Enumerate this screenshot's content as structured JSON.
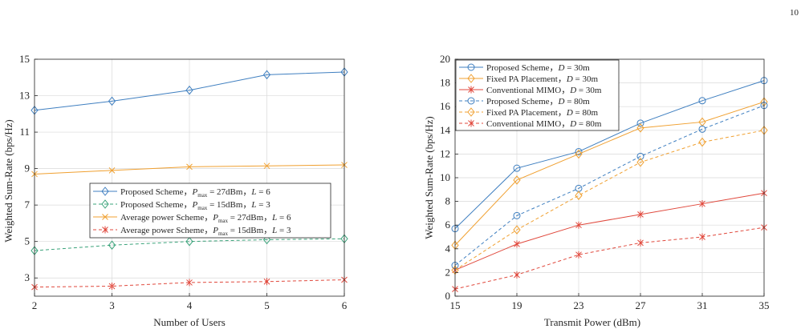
{
  "page": {
    "number": "10"
  },
  "colors": {
    "blue": "#3f7fc0",
    "orange": "#f0a030",
    "green": "#3aa37a",
    "red": "#e0483c"
  },
  "chart_data": [
    {
      "id": "left",
      "type": "line",
      "title": "",
      "xlabel": "Number of Users",
      "ylabel": "Weighted Sum-Rate (bps/Hz)",
      "xlim": [
        2,
        6
      ],
      "ylim": [
        2,
        15
      ],
      "xticks": [
        2,
        3,
        4,
        5,
        6
      ],
      "yticks": [
        3,
        5,
        7,
        9,
        11,
        13,
        15
      ],
      "grid": true,
      "legend_position": "center",
      "x": [
        2,
        3,
        4,
        5,
        6
      ],
      "series": [
        {
          "name_main": "Proposed Scheme，",
          "name_var": "P",
          "name_sub": "max",
          "name_rest": " = 27dBm，",
          "name_var2": "L",
          "name_end": " = 6",
          "color": "#3f7fc0",
          "dash": "solid",
          "marker": "diamond",
          "values": [
            12.2,
            12.7,
            13.3,
            14.15,
            14.3
          ]
        },
        {
          "name_main": "Proposed Scheme，",
          "name_var": "P",
          "name_sub": "max",
          "name_rest": " = 15dBm，",
          "name_var2": "L",
          "name_end": " = 3",
          "color": "#3aa37a",
          "dash": "dashed",
          "marker": "diamond",
          "values": [
            4.5,
            4.8,
            5.0,
            5.1,
            5.15
          ]
        },
        {
          "name_main": "Average power Scheme，",
          "name_var": "P",
          "name_sub": "max",
          "name_rest": " = 27dBm，",
          "name_var2": "L",
          "name_end": " = 6",
          "color": "#f0a030",
          "dash": "solid",
          "marker": "x",
          "values": [
            8.7,
            8.9,
            9.1,
            9.15,
            9.2
          ]
        },
        {
          "name_main": "Average power Scheme，",
          "name_var": "P",
          "name_sub": "max",
          "name_rest": " = 15dBm，",
          "name_var2": "L",
          "name_end": " = 3",
          "color": "#e0483c",
          "dash": "dashed",
          "marker": "star",
          "values": [
            2.5,
            2.55,
            2.75,
            2.8,
            2.9
          ]
        }
      ]
    },
    {
      "id": "right",
      "type": "line",
      "title": "",
      "xlabel": "Transmit Power (dBm)",
      "ylabel": "Weighted Sum-Rate (bps/Hz)",
      "xlim": [
        15,
        35
      ],
      "ylim": [
        0,
        20
      ],
      "xticks": [
        15,
        19,
        23,
        27,
        31,
        35
      ],
      "yticks": [
        0,
        2,
        4,
        6,
        8,
        10,
        12,
        14,
        16,
        18,
        20
      ],
      "grid": true,
      "legend_position": "top-left",
      "x": [
        15,
        19,
        23,
        27,
        31,
        35
      ],
      "series": [
        {
          "name_main": "Proposed Scheme，",
          "name_var": "D",
          "name_end": " = 30m",
          "color": "#3f7fc0",
          "dash": "solid",
          "marker": "circle",
          "values": [
            5.7,
            10.8,
            12.2,
            14.6,
            16.5,
            18.2
          ]
        },
        {
          "name_main": "Fixed PA Placement，",
          "name_var": "D",
          "name_end": " = 30m",
          "color": "#f0a030",
          "dash": "solid",
          "marker": "diamond",
          "values": [
            4.3,
            9.8,
            12.0,
            14.2,
            14.7,
            16.4
          ]
        },
        {
          "name_main": "Conventional MIMO，",
          "name_var": "D",
          "name_end": " = 30m",
          "color": "#e0483c",
          "dash": "solid",
          "marker": "star",
          "values": [
            2.2,
            4.4,
            6.0,
            6.9,
            7.8,
            8.7
          ]
        },
        {
          "name_main": "Proposed Scheme，",
          "name_var": "D",
          "name_end": " = 80m",
          "color": "#3f7fc0",
          "dash": "dashed",
          "marker": "circle",
          "values": [
            2.6,
            6.8,
            9.1,
            11.8,
            14.1,
            16.1
          ]
        },
        {
          "name_main": "Fixed PA Placement，",
          "name_var": "D",
          "name_end": " = 80m",
          "color": "#f0a030",
          "dash": "dashed",
          "marker": "diamond",
          "values": [
            2.2,
            5.6,
            8.5,
            11.3,
            13.0,
            14.0
          ]
        },
        {
          "name_main": "Conventional MIMO，",
          "name_var": "D",
          "name_end": " = 80m",
          "color": "#e0483c",
          "dash": "dashed",
          "marker": "star",
          "values": [
            0.6,
            1.8,
            3.5,
            4.5,
            5.0,
            5.8
          ]
        }
      ]
    }
  ]
}
